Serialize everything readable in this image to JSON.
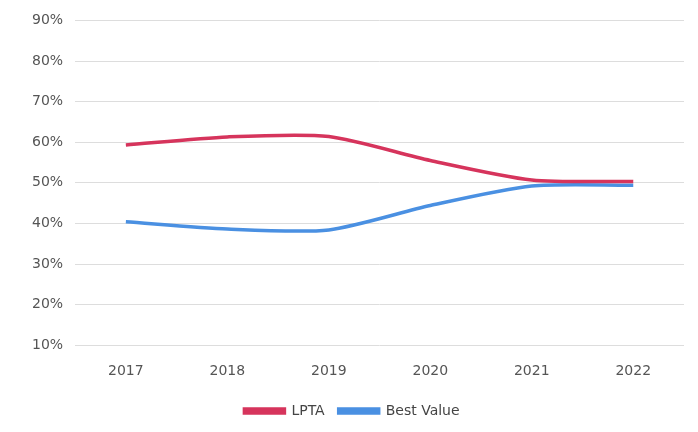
{
  "chart_data": {
    "type": "line",
    "categories": [
      "2017",
      "2018",
      "2019",
      "2020",
      "2021",
      "2022"
    ],
    "series": [
      {
        "name": "LPTA",
        "color": "#d6345c",
        "values": [
          59.3,
          61.3,
          61.4,
          55.5,
          50.7,
          50.3
        ]
      },
      {
        "name": "Best Value",
        "color": "#4a90e2",
        "values": [
          40.4,
          38.6,
          38.4,
          44.4,
          49.2,
          49.4
        ]
      }
    ],
    "ylim": [
      10,
      90
    ],
    "yticks": [
      {
        "value": 10,
        "label": "10%"
      },
      {
        "value": 20,
        "label": "20%"
      },
      {
        "value": 30,
        "label": "30%"
      },
      {
        "value": 40,
        "label": "40%"
      },
      {
        "value": 50,
        "label": "50%"
      },
      {
        "value": 60,
        "label": "60%"
      },
      {
        "value": 70,
        "label": "70%"
      },
      {
        "value": 80,
        "label": "80%"
      },
      {
        "value": 90,
        "label": "90%"
      }
    ],
    "grid": true,
    "legend": "bottom"
  }
}
